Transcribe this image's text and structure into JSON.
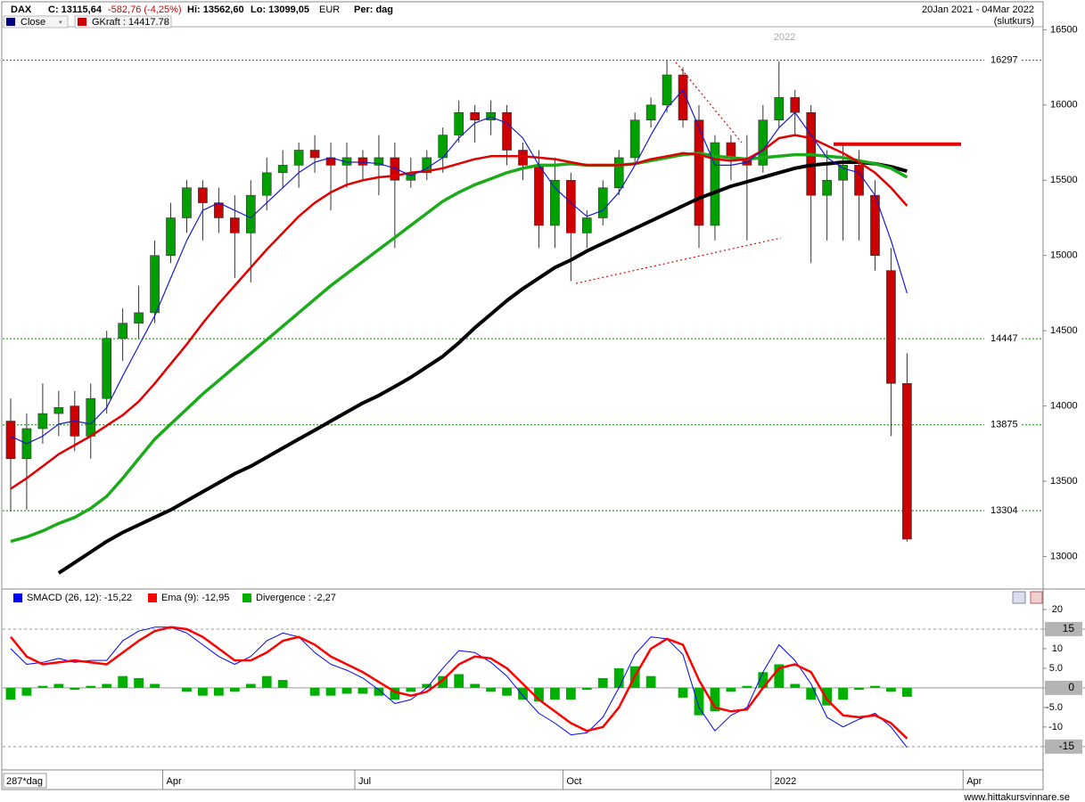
{
  "chart_data": [
    {
      "type": "candlestick",
      "title": "DAX",
      "close_label": "C: 13115,64",
      "change": "-582,76 (-4,25%)",
      "high_label": "Hi: 13562,60",
      "low_label": "Lo: 13099,05",
      "currency": "EUR",
      "period": "Per: dag",
      "date_range": "20Jan 2021 - 04Mar 2022",
      "price_type": "(slutkurs)",
      "watermark": "2022",
      "bar_count_label": "287*dag",
      "source": "www.hittakursvinnare.se",
      "legend": [
        {
          "name": "Close",
          "color": "#000080"
        },
        {
          "name": "GKraft : 14417.78",
          "color": "#cc0000"
        }
      ],
      "up_color": "#00a000",
      "down_color": "#cc0000",
      "change_color": "#cc0000",
      "categories": [
        null,
        null,
        null,
        null,
        null,
        null,
        null,
        null,
        null,
        null,
        "Apr",
        null,
        null,
        null,
        null,
        null,
        null,
        null,
        null,
        null,
        null,
        null,
        "Jul",
        null,
        null,
        null,
        null,
        null,
        null,
        null,
        null,
        null,
        null,
        null,
        null,
        "Oct",
        null,
        null,
        null,
        null,
        null,
        null,
        null,
        null,
        null,
        null,
        null,
        null,
        "2022",
        null,
        null,
        null,
        null,
        null,
        null,
        null,
        null,
        null,
        null,
        null,
        "Apr",
        null,
        null,
        null,
        null
      ],
      "open": [
        13900,
        13650,
        13850,
        13950,
        14000,
        13800,
        14050,
        14450,
        14550,
        14620,
        15000,
        15250,
        15450,
        15350,
        15250,
        15150,
        15400,
        15550,
        15600,
        15700,
        15650,
        15600,
        15650,
        15600,
        15650,
        15500,
        15550,
        15650,
        15800,
        15950,
        15900,
        15950,
        15700,
        15600,
        15200,
        15500,
        15150,
        15250,
        15450,
        15650,
        15900,
        16000,
        16200,
        15900,
        15200,
        15750,
        15650,
        15600,
        15900,
        16050,
        15950,
        15400,
        15500,
        15600,
        15400,
        14900,
        14150,
        null,
        null,
        null,
        null,
        null,
        null,
        null,
        null
      ],
      "high": [
        14050,
        13950,
        14150,
        14100,
        14100,
        14150,
        14500,
        14650,
        14800,
        15100,
        15350,
        15500,
        15500,
        15450,
        15400,
        15500,
        15650,
        15700,
        15750,
        15800,
        15750,
        15750,
        15700,
        15800,
        15750,
        15650,
        15700,
        15850,
        16030,
        16000,
        16030,
        16000,
        15750,
        15700,
        15650,
        15550,
        15300,
        15500,
        15700,
        15950,
        16050,
        16300,
        16250,
        16000,
        15800,
        15800,
        15800,
        16000,
        16290,
        16100,
        16000,
        15700,
        15750,
        15700,
        15500,
        15050,
        14350,
        null,
        null,
        null,
        null,
        null,
        null,
        null,
        null
      ],
      "low": [
        13300,
        13310,
        13750,
        13800,
        13700,
        13650,
        13950,
        14300,
        14450,
        14550,
        14950,
        15150,
        15100,
        15150,
        14850,
        14820,
        15300,
        15450,
        15450,
        15550,
        15300,
        15450,
        15500,
        15400,
        15050,
        15450,
        15500,
        15550,
        15750,
        15750,
        15800,
        15600,
        15500,
        15050,
        15050,
        14830,
        15050,
        15200,
        15400,
        15600,
        15850,
        15950,
        15850,
        15050,
        15100,
        15500,
        15100,
        15550,
        15850,
        15800,
        14950,
        15100,
        15100,
        15100,
        14900,
        13800,
        13099.05,
        null,
        null,
        null,
        null,
        null,
        null,
        null,
        null
      ],
      "close": [
        13650,
        13850,
        13950,
        13990,
        13800,
        14050,
        14450,
        14550,
        14620,
        15000,
        15250,
        15450,
        15350,
        15250,
        15150,
        15400,
        15550,
        15600,
        15700,
        15650,
        15600,
        15650,
        15600,
        15650,
        15500,
        15550,
        15650,
        15800,
        15950,
        15900,
        15950,
        15700,
        15600,
        15200,
        15500,
        15150,
        15250,
        15450,
        15650,
        15900,
        16000,
        16200,
        15900,
        15200,
        15750,
        15650,
        15600,
        15900,
        16050,
        15950,
        15400,
        15500,
        15600,
        15400,
        15000,
        14150,
        13115.64,
        null,
        null,
        null,
        null,
        null,
        null,
        null,
        null
      ],
      "lines": [
        {
          "color": "#000000",
          "width": 4,
          "values": [
            null,
            null,
            null,
            12890,
            12960,
            13030,
            13100,
            13160,
            13210,
            13260,
            13310,
            13370,
            13430,
            13490,
            13550,
            13600,
            13660,
            13720,
            13780,
            13840,
            13900,
            13960,
            14020,
            14070,
            14130,
            14190,
            14260,
            14330,
            14420,
            14520,
            14610,
            14700,
            14780,
            14850,
            14920,
            14970,
            15030,
            15080,
            15130,
            15180,
            15230,
            15280,
            15330,
            15380,
            15420,
            15460,
            15490,
            15520,
            15550,
            15580,
            15600,
            15610,
            15620,
            15620,
            15610,
            15590,
            15560,
            null,
            null,
            null,
            null,
            null,
            null,
            null,
            null
          ]
        },
        {
          "color": "#1aaa1a",
          "width": 3.5,
          "values": [
            13100,
            13130,
            13170,
            13220,
            13260,
            13320,
            13400,
            13520,
            13650,
            13780,
            13880,
            13980,
            14080,
            14170,
            14260,
            14350,
            14440,
            14530,
            14620,
            14710,
            14800,
            14880,
            14960,
            15040,
            15120,
            15200,
            15280,
            15360,
            15420,
            15470,
            15510,
            15550,
            15580,
            15600,
            15600,
            15610,
            15600,
            15600,
            15600,
            15610,
            15630,
            15650,
            15670,
            15680,
            15660,
            15650,
            15640,
            15650,
            15660,
            15670,
            15670,
            15660,
            15650,
            15630,
            15610,
            15580,
            15520,
            null,
            null,
            null,
            null,
            null,
            null,
            null,
            null
          ]
        },
        {
          "color": "#e00000",
          "width": 2.5,
          "values": [
            13450,
            13520,
            13600,
            13680,
            13740,
            13800,
            13870,
            13940,
            14030,
            14150,
            14280,
            14410,
            14550,
            14680,
            14800,
            14920,
            15040,
            15150,
            15260,
            15350,
            15420,
            15470,
            15500,
            15520,
            15530,
            15550,
            15560,
            15580,
            15610,
            15640,
            15660,
            15660,
            15660,
            15650,
            15640,
            15620,
            15600,
            15600,
            15600,
            15610,
            15640,
            15660,
            15680,
            15670,
            15640,
            15630,
            15640,
            15700,
            15780,
            15800,
            15780,
            15730,
            15680,
            15620,
            15550,
            15450,
            15330,
            null,
            null,
            null,
            null,
            null,
            null,
            null,
            null
          ]
        },
        {
          "color": "#1a1acc",
          "width": 1.2,
          "values": [
            13800,
            13750,
            13800,
            13880,
            13900,
            13880,
            13990,
            14200,
            14400,
            14600,
            14850,
            15100,
            15300,
            15350,
            15300,
            15250,
            15350,
            15450,
            15550,
            15620,
            15650,
            15620,
            15620,
            15610,
            15580,
            15530,
            15580,
            15650,
            15780,
            15880,
            15920,
            15880,
            15780,
            15600,
            15450,
            15350,
            15260,
            15300,
            15420,
            15600,
            15800,
            15980,
            16100,
            15850,
            15600,
            15600,
            15620,
            15700,
            15850,
            15950,
            15800,
            15650,
            15580,
            15550,
            15400,
            15100,
            14750,
            null,
            null,
            null,
            null,
            null,
            null,
            null,
            null
          ]
        }
      ],
      "levels": [
        16297,
        14447,
        13875,
        13304
      ],
      "level_color": "#008800",
      "resistance": 15740,
      "resistance_color": "#e00000",
      "ylim": [
        12790,
        16520
      ],
      "yticks": [
        13000,
        13500,
        14000,
        14500,
        15000,
        15500,
        16000,
        16500
      ]
    },
    {
      "type": "macd",
      "series": [
        {
          "name": "SMACD (26, 12): -15,22",
          "color": "#0000ff",
          "kind": "line",
          "width": 1,
          "values": [
            10,
            6,
            6.5,
            7.5,
            6.5,
            7,
            7,
            12,
            14.5,
            15.5,
            15.5,
            14,
            11,
            8,
            6,
            8,
            12,
            14,
            13,
            9,
            6,
            4.5,
            2.5,
            -0.5,
            -4,
            -3,
            0,
            5,
            9.5,
            9,
            6.5,
            3,
            -2,
            -6.5,
            -9,
            -12,
            -11.5,
            -7.5,
            0,
            8.5,
            13,
            12.5,
            8.5,
            -5,
            -11,
            -7,
            -5,
            4,
            11,
            7,
            1,
            -7.5,
            -10,
            -8,
            -6.5,
            -10,
            -15.22,
            null,
            null,
            null,
            null,
            null,
            null,
            null,
            null
          ]
        },
        {
          "name": "Ema (9): -12,95",
          "color": "#ff0000",
          "kind": "line",
          "width": 2.5,
          "values": [
            13,
            8,
            6,
            6.5,
            7,
            6.5,
            6,
            9,
            12,
            14.5,
            15.5,
            15,
            13,
            10,
            7,
            7,
            9,
            12,
            13,
            11,
            8,
            6,
            4,
            1.5,
            -1,
            -2,
            -1,
            2,
            6,
            8,
            7.5,
            5,
            1,
            -3,
            -6,
            -9,
            -11,
            -10,
            -5,
            3,
            10,
            12.5,
            11,
            2,
            -5,
            -6,
            -5.5,
            0,
            5,
            6,
            4,
            -3,
            -7,
            -7.5,
            -7,
            -9,
            -12.95,
            null,
            null,
            null,
            null,
            null,
            null,
            null,
            null
          ]
        },
        {
          "name": "Divergence : -2,27",
          "color": "#00b000",
          "kind": "bar",
          "values": [
            -3,
            -2,
            0.5,
            1,
            -0.5,
            0.5,
            1,
            3,
            2.5,
            1,
            0,
            -1,
            -2,
            -2,
            -1,
            1,
            3,
            2,
            0,
            -2,
            -2,
            -1.5,
            -1.5,
            -2,
            -3,
            -1,
            1,
            3,
            3.5,
            1,
            -1,
            -2,
            -3,
            -3.5,
            -3,
            -3,
            -0.5,
            2.5,
            5,
            5.5,
            3,
            0,
            -2.5,
            -7,
            -6,
            -1,
            0.5,
            4,
            6,
            1,
            -3,
            -4.5,
            -3,
            -0.5,
            0.5,
            -1,
            -2.27,
            null,
            null,
            null,
            null,
            null,
            null,
            null,
            null
          ]
        }
      ],
      "ylim": [
        -20.5,
        25
      ],
      "yticks": [
        20,
        10,
        {
          "value": 5,
          "label": "5.0"
        },
        {
          "value": -5,
          "label": "-5.0"
        },
        -10
      ],
      "markers": [
        15,
        0,
        -15
      ]
    }
  ]
}
